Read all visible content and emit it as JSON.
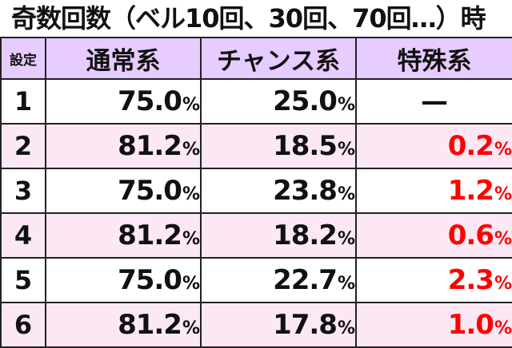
{
  "title": "奇数回数（ベル10回、30回、70回…）時",
  "headers": {
    "setting": "設定",
    "normal": "通常系",
    "chance": "チャンス系",
    "special": "特殊系"
  },
  "percent_sign": "%",
  "colors": {
    "header_bg": "#e6ccff",
    "even_row_bg": "#fbe8f4",
    "special_text": "#ff0000"
  },
  "rows": [
    {
      "setting": "1",
      "normal": "75.0",
      "chance": "25.0",
      "special": "—",
      "special_is_dash": true
    },
    {
      "setting": "2",
      "normal": "81.2",
      "chance": "18.5",
      "special": "0.2"
    },
    {
      "setting": "3",
      "normal": "75.0",
      "chance": "23.8",
      "special": "1.2"
    },
    {
      "setting": "4",
      "normal": "81.2",
      "chance": "18.2",
      "special": "0.6"
    },
    {
      "setting": "5",
      "normal": "75.0",
      "chance": "22.7",
      "special": "2.3"
    },
    {
      "setting": "6",
      "normal": "81.2",
      "chance": "17.8",
      "special": "1.0"
    }
  ]
}
